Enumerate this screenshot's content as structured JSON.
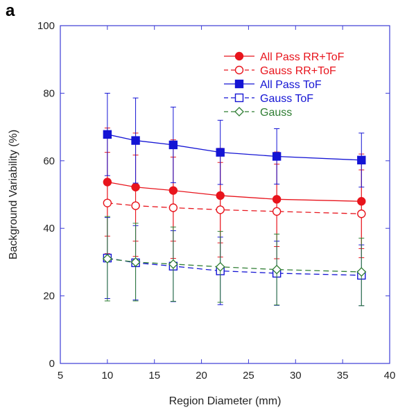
{
  "panel_label": "a",
  "chart_data": {
    "type": "line",
    "xlabel": "Region Diameter (mm)",
    "ylabel": "Background Variability (%)",
    "xlim": [
      5,
      40
    ],
    "ylim": [
      0,
      100
    ],
    "xticks": [
      5,
      10,
      15,
      20,
      25,
      30,
      35,
      40
    ],
    "yticks": [
      0,
      20,
      40,
      60,
      80,
      100
    ],
    "grid": false,
    "legend_position": "top-right",
    "x": [
      10,
      13,
      17,
      22,
      28,
      37
    ],
    "series": [
      {
        "name": "All Pass RR+ToF",
        "color": "#e8141c",
        "marker": "filled-circle",
        "line": "solid",
        "values": [
          53.7,
          52.2,
          51.2,
          49.7,
          48.6,
          48.0
        ],
        "errors": [
          16,
          16,
          15,
          14,
          14,
          14
        ]
      },
      {
        "name": "Gauss RR+ToF",
        "color": "#e8141c",
        "marker": "open-circle",
        "line": "dashed",
        "values": [
          47.5,
          46.7,
          46.1,
          45.5,
          45.0,
          44.3
        ],
        "errors": [
          15,
          15,
          15,
          14,
          14,
          13
        ]
      },
      {
        "name": "All Pass ToF",
        "color": "#1414d4",
        "marker": "filled-square",
        "line": "solid",
        "values": [
          67.8,
          66.0,
          64.7,
          62.5,
          61.3,
          60.2
        ],
        "errors": [
          12.2,
          12.6,
          11.2,
          9.5,
          8.2,
          8.0
        ]
      },
      {
        "name": "Gauss ToF",
        "color": "#1414d4",
        "marker": "open-square",
        "line": "dashed",
        "values": [
          31.2,
          29.8,
          28.8,
          27.4,
          26.7,
          26.1
        ],
        "errors": [
          12,
          11,
          10.5,
          10,
          9.5,
          9
        ]
      },
      {
        "name": "Gauss",
        "color": "#2e7d32",
        "marker": "open-diamond",
        "line": "dashed",
        "values": [
          31.0,
          30.0,
          29.4,
          28.6,
          27.8,
          27.1
        ],
        "errors": [
          12.5,
          11.5,
          11,
          10.5,
          10.5,
          10
        ]
      }
    ]
  }
}
